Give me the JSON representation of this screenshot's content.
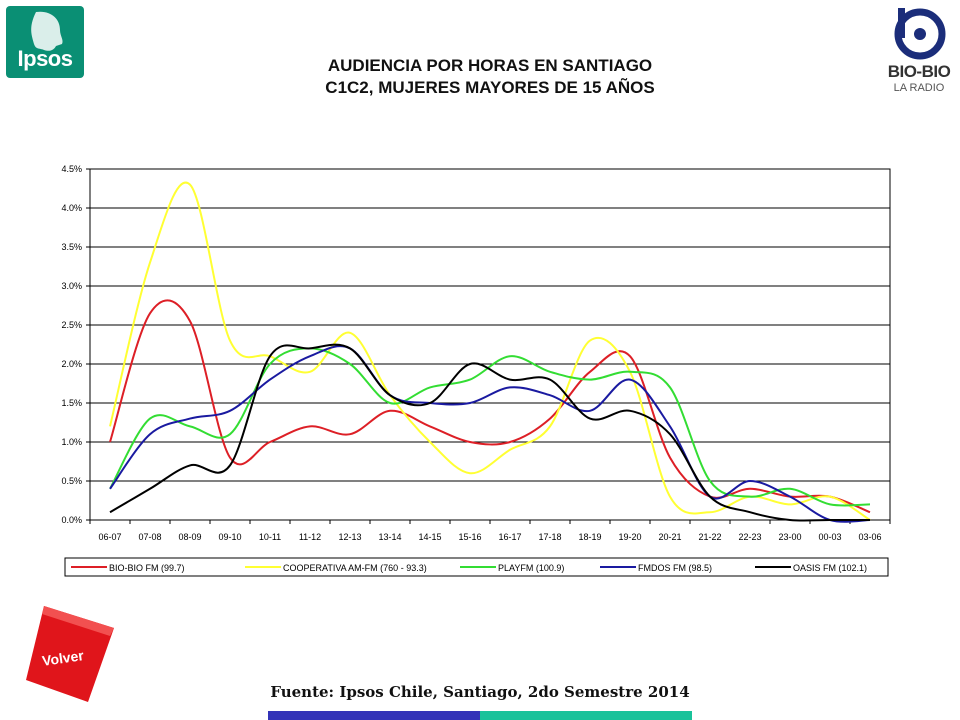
{
  "header": {
    "title_line1": "AUDIENCIA POR HORAS EN SANTIAGO",
    "title_line2": "C1C2, MUJERES MAYORES DE 15 AÑOS"
  },
  "logos": {
    "ipsos": "Ipsos",
    "biobio_name": "BIO-BIO",
    "biobio_sub": "LA RADIO"
  },
  "buttons": {
    "volver": "Volver"
  },
  "footer": {
    "source": "Fuente: Ipsos Chile, Santiago, 2do Semestre 2014"
  },
  "colors": {
    "ipsos_green": "#0a8f74",
    "volver_red": "#e0151b",
    "bar_blue": "#3333b8",
    "bar_teal": "#19c29a"
  },
  "chart_data": {
    "type": "line",
    "x": [
      "06-07",
      "07-08",
      "08-09",
      "09-10",
      "10-11",
      "11-12",
      "12-13",
      "13-14",
      "14-15",
      "15-16",
      "16-17",
      "17-18",
      "18-19",
      "19-20",
      "20-21",
      "21-22",
      "22-23",
      "23-00",
      "00-03",
      "03-06"
    ],
    "ylim": [
      0,
      4.5
    ],
    "yticks": [
      "0.0%",
      "0.5%",
      "1.0%",
      "1.5%",
      "2.0%",
      "2.5%",
      "3.0%",
      "3.5%",
      "4.0%",
      "4.5%"
    ],
    "grid": true,
    "legend": "bottom",
    "series": [
      {
        "name": "BIO-BIO FM (99.7)",
        "color": "#dd1f26",
        "values": [
          1.0,
          2.65,
          2.55,
          0.8,
          1.0,
          1.2,
          1.1,
          1.4,
          1.2,
          1.0,
          1.0,
          1.3,
          1.9,
          2.1,
          0.8,
          0.3,
          0.4,
          0.3,
          0.3,
          0.1
        ]
      },
      {
        "name": "COOPERATIVA AM-FM (760 - 93.3)",
        "color": "#ffff33",
        "values": [
          1.2,
          3.3,
          4.3,
          2.3,
          2.1,
          1.9,
          2.4,
          1.6,
          1.0,
          0.6,
          0.9,
          1.2,
          2.3,
          1.9,
          0.3,
          0.1,
          0.3,
          0.2,
          0.3,
          0.0
        ]
      },
      {
        "name": "PLAYFM (100.9)",
        "color": "#33dd33",
        "values": [
          0.4,
          1.3,
          1.2,
          1.1,
          2.0,
          2.2,
          2.0,
          1.5,
          1.7,
          1.8,
          2.1,
          1.9,
          1.8,
          1.9,
          1.7,
          0.5,
          0.3,
          0.4,
          0.2,
          0.2
        ]
      },
      {
        "name": "FMDOS FM (98.5)",
        "color": "#1a1aa0",
        "values": [
          0.4,
          1.1,
          1.3,
          1.4,
          1.8,
          2.1,
          2.2,
          1.6,
          1.5,
          1.5,
          1.7,
          1.6,
          1.4,
          1.8,
          1.2,
          0.3,
          0.5,
          0.3,
          0.0,
          0.0
        ]
      },
      {
        "name": "OASIS FM (102.1)",
        "color": "#000000",
        "values": [
          0.1,
          0.4,
          0.7,
          0.7,
          2.1,
          2.2,
          2.2,
          1.6,
          1.5,
          2.0,
          1.8,
          1.8,
          1.3,
          1.4,
          1.1,
          0.3,
          0.1,
          0.0,
          0.0,
          0.0
        ]
      }
    ]
  }
}
